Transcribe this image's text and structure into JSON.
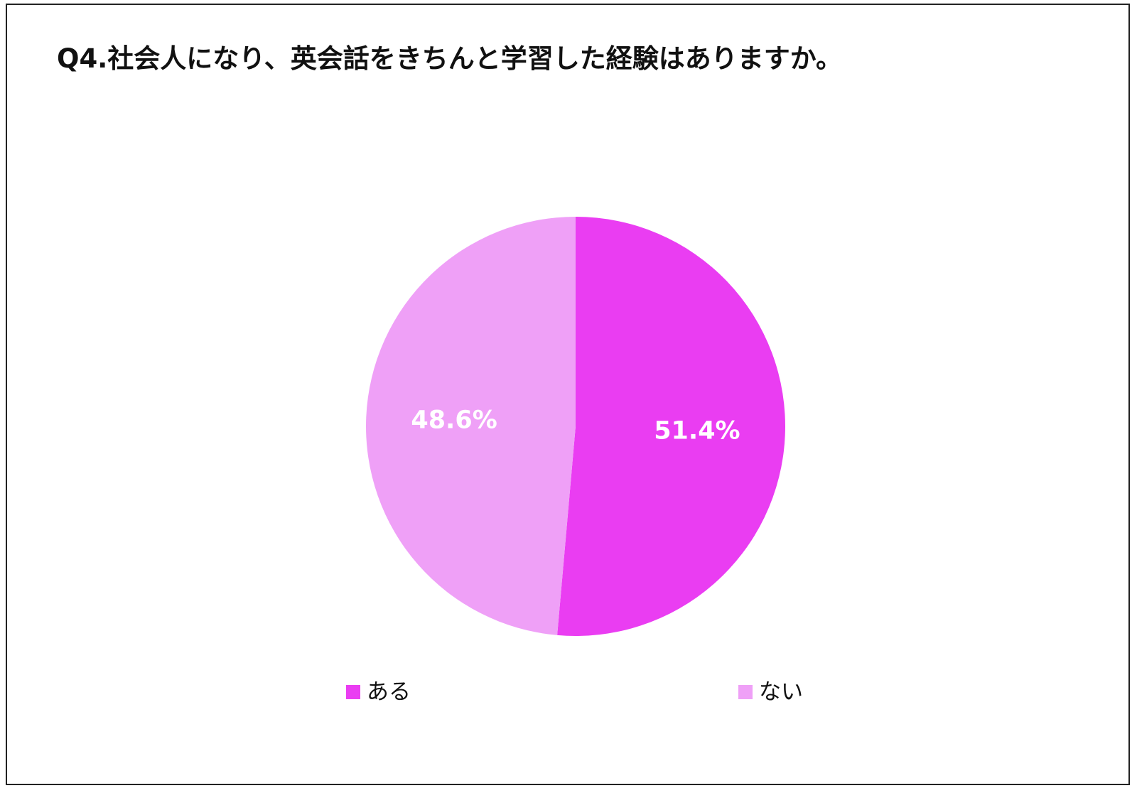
{
  "chart_data": {
    "type": "pie",
    "title": "Q4.社会人になり、英会話をきちんと学習した経験はありますか。",
    "categories": [
      "ある",
      "ない"
    ],
    "values": [
      51.4,
      48.6
    ],
    "value_labels": [
      "51.4%",
      "48.6%"
    ],
    "colors": [
      "#EA3DF2",
      "#EFA0F7"
    ],
    "start_angle": "12 o'clock",
    "direction": "clockwise",
    "legend_placement": "bottom"
  }
}
